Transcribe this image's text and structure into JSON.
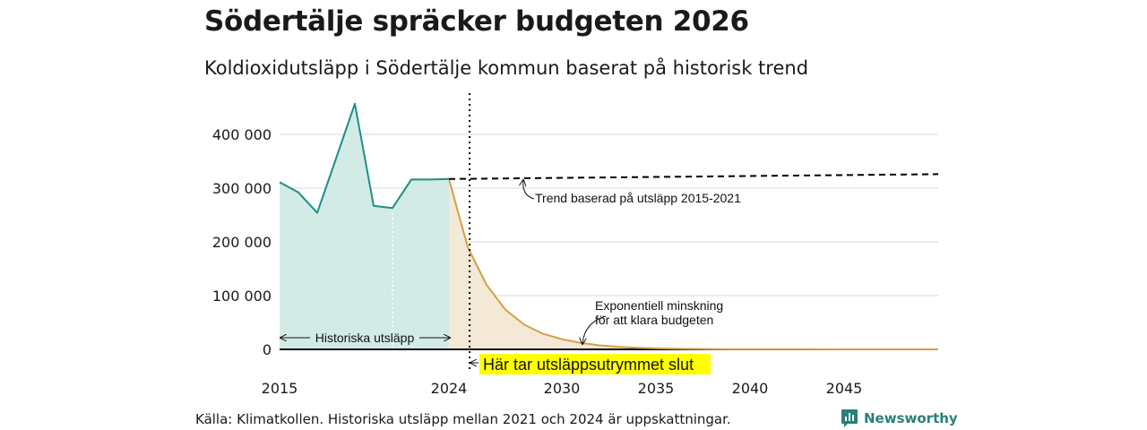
{
  "header": {
    "title": "Södertälje spräcker budgeten 2026",
    "subtitle": "Koldioxidutsläpp i Södertälje kommun baserat på historisk trend"
  },
  "footer": {
    "source": "Källa: Klimatkollen. Historiska utsläpp mellan 2021 och 2024 är uppskattningar.",
    "logo_text": "Newsworthy",
    "logo_icon": "bar-chart-icon"
  },
  "colors": {
    "historical_line": "#1f8f83",
    "historical_fill": "#d2ebe6",
    "budget_line": "#d3a04a",
    "budget_fill": "#f4e8d7",
    "highlight": "#ffff00",
    "logo": "#2a7f79"
  },
  "chart_data": {
    "type": "line",
    "xlim": [
      2015,
      2050
    ],
    "ylim": [
      0,
      400000
    ],
    "yticks": [
      0,
      100000,
      200000,
      300000,
      400000
    ],
    "ytick_labels": [
      "0",
      "100 000",
      "200 000",
      "300 000",
      "400 000"
    ],
    "xticks": [
      2015,
      2024,
      2030,
      2035,
      2040,
      2045
    ],
    "xtick_labels": [
      "2015",
      "2024",
      "2030",
      "2035",
      "2040",
      "2045"
    ],
    "grid": true,
    "series": [
      {
        "name": "",
        "style": "historical",
        "x": [
          2015,
          2016,
          2017,
          2018,
          2019,
          2020,
          2021,
          2022,
          2023,
          2024
        ],
        "y": [
          311000,
          292000,
          254000,
          355000,
          457000,
          267000,
          263000,
          316000,
          316000,
          317000
        ]
      },
      {
        "name": "",
        "style": "trend",
        "x": [
          2024,
          2050
        ],
        "y": [
          317000,
          326000
        ]
      },
      {
        "name": "",
        "style": "budget",
        "x": [
          2024,
          2025,
          2026,
          2027,
          2028,
          2029,
          2030,
          2031,
          2032,
          2033,
          2034,
          2035,
          2036,
          2037,
          2038,
          2039,
          2040,
          2045,
          2050
        ],
        "y": [
          317000,
          190000,
          120000,
          74000,
          46000,
          29000,
          19000,
          12000,
          7500,
          4800,
          3000,
          1900,
          1200,
          800,
          500,
          300,
          200,
          20,
          0
        ]
      }
    ],
    "markers": [
      {
        "x": 2025.1,
        "style": "dotted-vertical"
      },
      {
        "x": 2021,
        "style": "dotted-white-vertical"
      }
    ],
    "annotations": {
      "trend": "Trend baserad på utsläpp 2015-2021",
      "budget_1": "Exponentiell minskning",
      "budget_2": "för att klara budgeten",
      "historical": "Historiska utsläpp",
      "budget_end": "Här tar utsläppsutrymmet slut"
    }
  }
}
